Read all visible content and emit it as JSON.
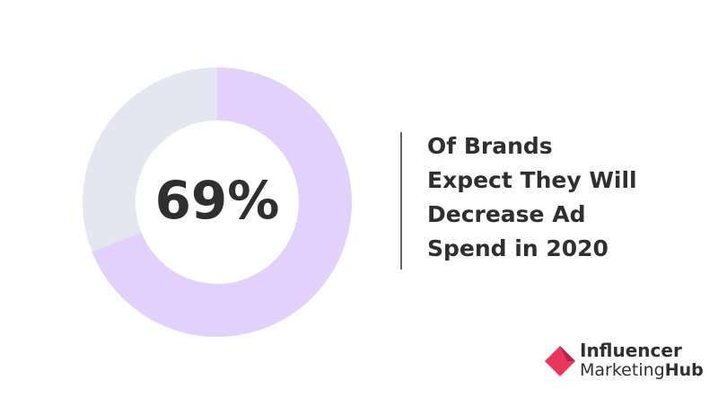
{
  "chart_data": {
    "type": "donut",
    "values": [
      69,
      31
    ],
    "value_labels": [
      "69%",
      null
    ],
    "colors": [
      "#e1d1fb",
      "#e4e7f0"
    ]
  },
  "caption": [
    "Of Brands",
    "Expect They Will",
    "Decrease Ad",
    "Spend in 2020"
  ],
  "brand": {
    "line1": "Influencer",
    "line2": "Marketing",
    "line2_bold": "Hub"
  }
}
